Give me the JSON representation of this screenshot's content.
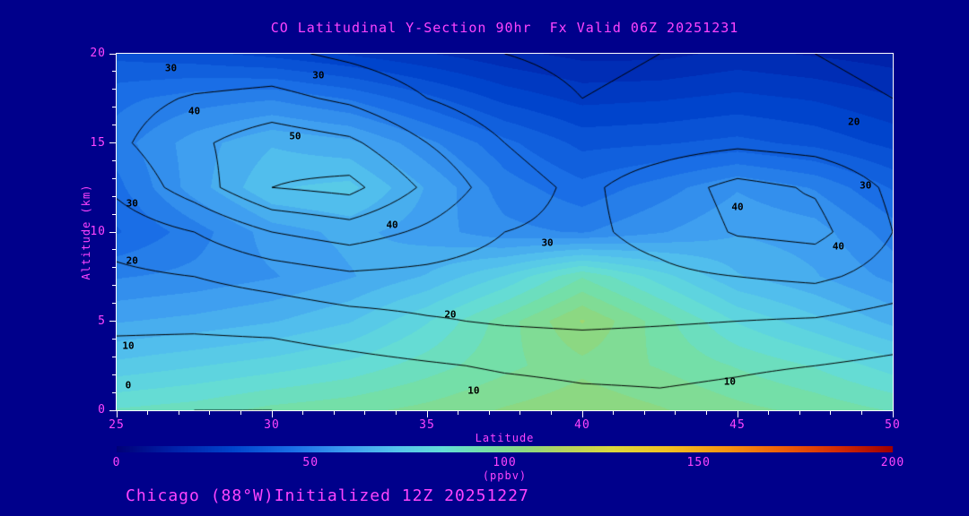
{
  "title": "CO Latitudinal Y-Section 90hr  Fx Valid 06Z 20251231",
  "footer": "Chicago (88°W)Initialized 12Z 20251227",
  "axes": {
    "x_label": "Latitude",
    "y_label": "Altitude (km)",
    "x_range": [
      25,
      50
    ],
    "y_range": [
      0,
      20
    ],
    "x_ticks": [
      25,
      30,
      35,
      40,
      45,
      50
    ],
    "y_ticks": [
      0,
      5,
      10,
      15,
      20
    ],
    "x_minor_step": 1,
    "y_minor_step": 1
  },
  "colorbar": {
    "ticks": [
      0,
      50,
      100,
      150,
      200
    ],
    "range": [
      0,
      200
    ],
    "unit": "(ppbv)",
    "stops": [
      {
        "v": 0,
        "c": "#000078"
      },
      {
        "v": 15,
        "c": "#0022aa"
      },
      {
        "v": 30,
        "c": "#0044cc"
      },
      {
        "v": 45,
        "c": "#1a6ee6"
      },
      {
        "v": 60,
        "c": "#3f9ff0"
      },
      {
        "v": 72,
        "c": "#55c4ec"
      },
      {
        "v": 84,
        "c": "#63dcd8"
      },
      {
        "v": 95,
        "c": "#74dfa8"
      },
      {
        "v": 105,
        "c": "#8cd882"
      },
      {
        "v": 115,
        "c": "#b4d45f"
      },
      {
        "v": 128,
        "c": "#dcd83c"
      },
      {
        "v": 142,
        "c": "#f2c122"
      },
      {
        "v": 158,
        "c": "#f59211"
      },
      {
        "v": 172,
        "c": "#ee5e08"
      },
      {
        "v": 186,
        "c": "#d42b04"
      },
      {
        "v": 200,
        "c": "#9e0000"
      }
    ]
  },
  "colors": {
    "background": "#00008b",
    "text_accent": "#ff44ff",
    "axis": "#ffffff",
    "contour_line": "#000000"
  },
  "chart_data": {
    "type": "heatmap",
    "subtype": "filled-contour-cross-section",
    "title": "CO Latitudinal Y-Section 90hr  Fx Valid 06Z 20251231",
    "xlabel": "Latitude",
    "ylabel": "Altitude (km)",
    "units": "ppbv",
    "x": [
      25,
      27.5,
      30,
      32.5,
      35,
      37.5,
      40,
      42.5,
      45,
      47.5,
      50
    ],
    "y": [
      0,
      2.5,
      5,
      7.5,
      10,
      12.5,
      15,
      17.5,
      20
    ],
    "fill_values": [
      [
        88,
        90,
        94,
        96,
        99,
        103,
        106,
        103,
        99,
        96,
        92
      ],
      [
        74,
        77,
        80,
        84,
        90,
        96,
        101,
        97,
        92,
        87,
        80
      ],
      [
        62,
        64,
        67,
        72,
        82,
        95,
        108,
        95,
        82,
        74,
        66
      ],
      [
        52,
        54,
        57,
        62,
        68,
        78,
        92,
        80,
        68,
        63,
        56
      ],
      [
        42,
        50,
        60,
        64,
        60,
        54,
        52,
        57,
        62,
        60,
        50
      ],
      [
        46,
        60,
        72,
        74,
        62,
        50,
        44,
        50,
        57,
        52,
        42
      ],
      [
        50,
        60,
        67,
        64,
        54,
        44,
        36,
        37,
        39,
        36,
        31
      ],
      [
        46,
        50,
        52,
        47,
        39,
        31,
        26,
        27,
        29,
        27,
        23
      ],
      [
        36,
        34,
        31,
        27,
        23,
        19,
        16,
        16,
        19,
        17,
        15
      ]
    ],
    "line_values": [
      [
        1,
        0,
        0,
        1,
        3,
        5,
        7,
        8,
        7,
        5,
        3
      ],
      [
        6,
        5,
        5,
        7,
        9,
        11,
        12,
        12,
        11,
        10,
        8
      ],
      [
        12,
        12,
        13,
        16,
        19,
        21,
        22,
        21,
        20,
        19,
        16
      ],
      [
        18,
        20,
        24,
        28,
        27,
        25,
        26,
        28,
        30,
        32,
        26
      ],
      [
        24,
        30,
        40,
        45,
        38,
        30,
        28,
        33,
        41,
        43,
        30
      ],
      [
        32,
        45,
        60,
        63,
        48,
        34,
        28,
        35,
        43,
        39,
        28
      ],
      [
        38,
        48,
        56,
        52,
        40,
        30,
        24,
        26,
        28,
        26,
        22
      ],
      [
        36,
        41,
        43,
        38,
        30,
        24,
        20,
        22,
        24,
        22,
        20
      ],
      [
        30,
        31,
        32,
        28,
        24,
        20,
        18,
        20,
        22,
        20,
        18
      ]
    ],
    "line_levels": [
      0,
      10,
      20,
      30,
      40,
      50,
      60
    ],
    "contour_labels": [
      {
        "text": "30",
        "fx": 0.07,
        "fy": 0.04
      },
      {
        "text": "30",
        "fx": 0.26,
        "fy": 0.06
      },
      {
        "text": "40",
        "fx": 0.1,
        "fy": 0.16
      },
      {
        "text": "50",
        "fx": 0.23,
        "fy": 0.23
      },
      {
        "text": "20",
        "fx": 0.95,
        "fy": 0.19
      },
      {
        "text": "30",
        "fx": 0.965,
        "fy": 0.37
      },
      {
        "text": "30",
        "fx": 0.02,
        "fy": 0.42
      },
      {
        "text": "20",
        "fx": 0.02,
        "fy": 0.58
      },
      {
        "text": "10",
        "fx": 0.015,
        "fy": 0.82
      },
      {
        "text": "0",
        "fx": 0.015,
        "fy": 0.93
      },
      {
        "text": "40",
        "fx": 0.355,
        "fy": 0.48
      },
      {
        "text": "30",
        "fx": 0.555,
        "fy": 0.53
      },
      {
        "text": "20",
        "fx": 0.43,
        "fy": 0.73
      },
      {
        "text": "40",
        "fx": 0.8,
        "fy": 0.43
      },
      {
        "text": "40",
        "fx": 0.93,
        "fy": 0.54
      },
      {
        "text": "10",
        "fx": 0.46,
        "fy": 0.945
      },
      {
        "text": "10",
        "fx": 0.79,
        "fy": 0.92
      }
    ]
  }
}
